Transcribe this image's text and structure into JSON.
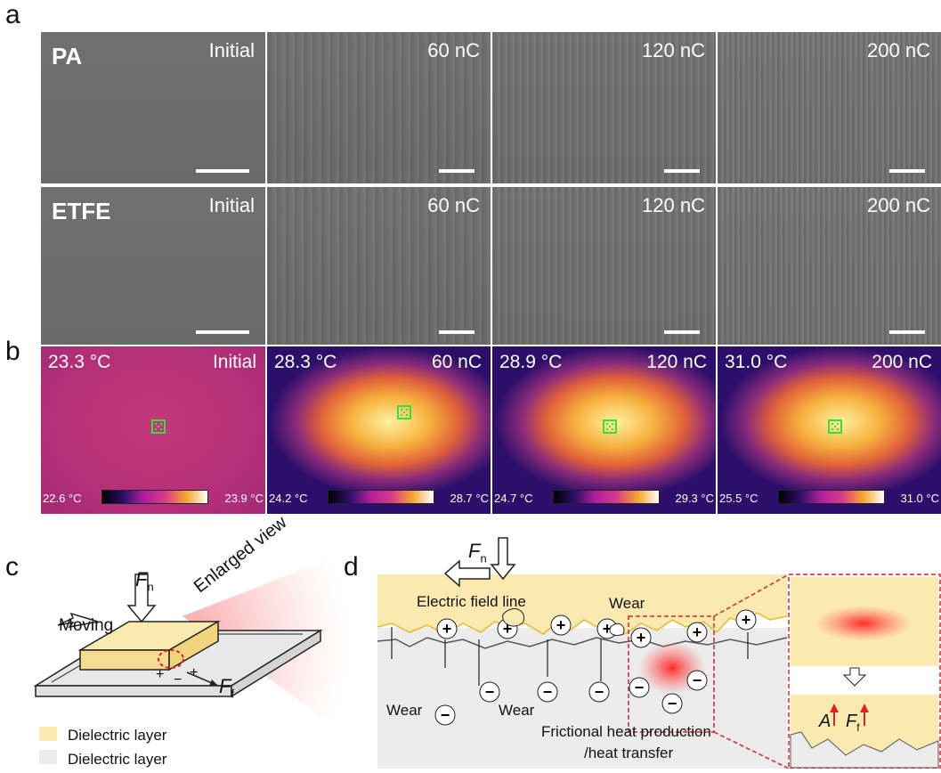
{
  "panel_labels": {
    "a": "a",
    "b": "b",
    "c": "c",
    "d": "d"
  },
  "panel_a": {
    "rows": [
      {
        "material": "PA",
        "cells": [
          "Initial",
          "60 nC",
          "120 nC",
          "200 nC"
        ]
      },
      {
        "material": "ETFE",
        "cells": [
          "Initial",
          "60 nC",
          "120 nC",
          "200 nC"
        ]
      }
    ]
  },
  "panel_b": {
    "cells": [
      {
        "label": "Initial",
        "temp": "23.3 °C",
        "min": "22.6 °C",
        "max": "23.9 °C"
      },
      {
        "label": "60 nC",
        "temp": "28.3 °C",
        "min": "24.2 °C",
        "max": "28.7 °C"
      },
      {
        "label": "120 nC",
        "temp": "28.9 °C",
        "min": "24.7 °C",
        "max": "29.3 °C"
      },
      {
        "label": "200 nC",
        "temp": "31.0 °C",
        "min": "25.5 °C",
        "max": "31.0 °C"
      }
    ],
    "colors": {
      "cold": "#2b0f6b",
      "mid": "#d93a8a",
      "hot": "#fff2a0"
    }
  },
  "panel_c": {
    "fn_label": "F",
    "fn_sub": "n",
    "ff_label": "F",
    "ff_sub": "f",
    "moving": "Moving",
    "enlarged": "Enlarged view",
    "legend": [
      "Dielectric layer",
      "Dielectric layer"
    ],
    "legend_colors": [
      "#fbeab0",
      "#ececec"
    ]
  },
  "panel_d": {
    "fn_label": "F",
    "fn_sub": "n",
    "field_line": "Electric field line",
    "wear": "Wear",
    "heat": "Frictional heat production",
    "heat2": "/heat transfer",
    "a_label": "A",
    "ff_label": "F",
    "ff_sub": "f"
  }
}
